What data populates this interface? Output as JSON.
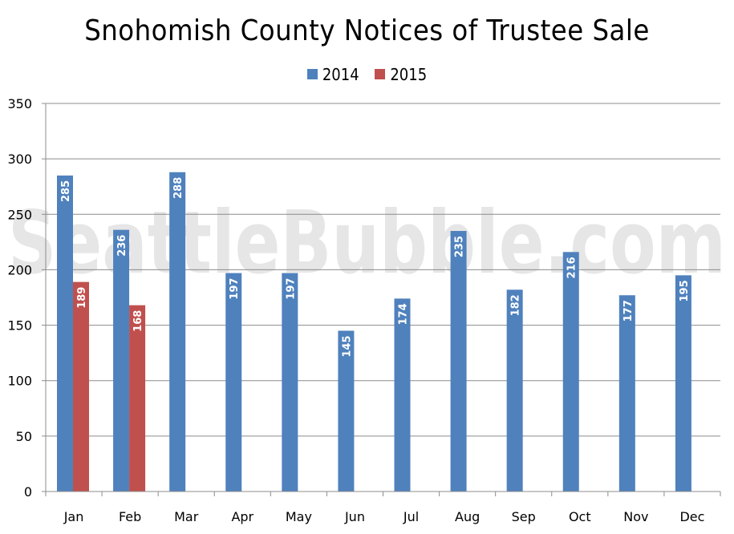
{
  "chart_data": {
    "type": "bar",
    "title": "Snohomish County Notices of Trustee Sale",
    "xlabel": "",
    "ylabel": "",
    "categories": [
      "Jan",
      "Feb",
      "Mar",
      "Apr",
      "May",
      "Jun",
      "Jul",
      "Aug",
      "Sep",
      "Oct",
      "Nov",
      "Dec"
    ],
    "series": [
      {
        "name": "2014",
        "color": "#4f81bd",
        "values": [
          285,
          236,
          288,
          197,
          197,
          145,
          174,
          235,
          182,
          216,
          177,
          195
        ]
      },
      {
        "name": "2015",
        "color": "#c0504d",
        "values": [
          189,
          168,
          null,
          null,
          null,
          null,
          null,
          null,
          null,
          null,
          null,
          null
        ]
      }
    ],
    "ylim": [
      0,
      350
    ],
    "yticks": [
      0,
      50,
      100,
      150,
      200,
      250,
      300,
      350
    ],
    "grid": true,
    "legend_position": "top",
    "data_labels": "inside-end-rotated"
  },
  "watermark": "SeattleBubble.com"
}
